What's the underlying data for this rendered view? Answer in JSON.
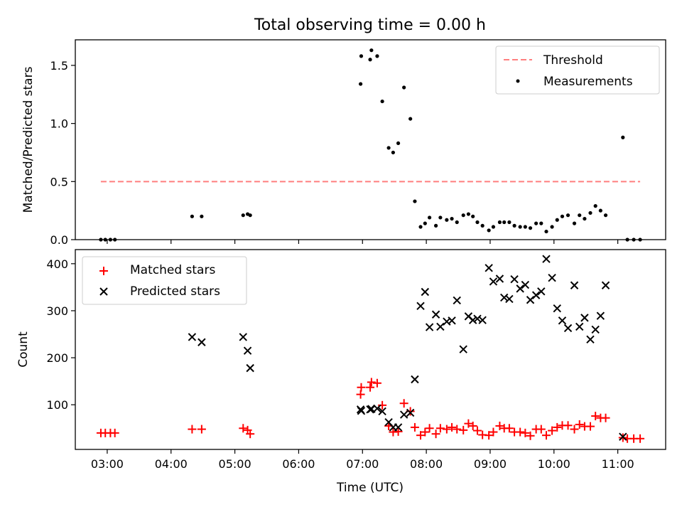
{
  "figure": {
    "title": "Total observing time = 0.00 h"
  },
  "chart_data": [
    {
      "type": "scatter",
      "ylabel": "Matched/Predicted stars",
      "xlabel": "",
      "xlim": [
        2.5,
        11.75
      ],
      "ylim": [
        0,
        1.72
      ],
      "x_ticks": [
        3,
        4,
        5,
        6,
        7,
        8,
        9,
        10,
        11
      ],
      "y_ticks": [
        0.0,
        0.5,
        1.0,
        1.5
      ],
      "y_tick_labels": [
        "0.0",
        "0.5",
        "1.0",
        "1.5"
      ],
      "x_tick_labels_visible": false,
      "legend_position": "top-right",
      "threshold": {
        "name": "Threshold",
        "value": 0.5,
        "x_range": [
          2.9,
          11.35
        ],
        "color": "#ff7f7f",
        "style": "dashed"
      },
      "series": [
        {
          "name": "Measurements",
          "color": "#000000",
          "marker": "dot",
          "points": [
            [
              2.9,
              0.0
            ],
            [
              2.97,
              0.0
            ],
            [
              3.05,
              0.0
            ],
            [
              3.12,
              0.0
            ],
            [
              4.33,
              0.2
            ],
            [
              4.48,
              0.2
            ],
            [
              5.13,
              0.21
            ],
            [
              5.2,
              0.22
            ],
            [
              5.24,
              0.21
            ],
            [
              6.97,
              1.34
            ],
            [
              6.98,
              1.58
            ],
            [
              7.12,
              1.55
            ],
            [
              7.14,
              1.63
            ],
            [
              7.23,
              1.58
            ],
            [
              7.31,
              1.19
            ],
            [
              7.41,
              0.79
            ],
            [
              7.48,
              0.75
            ],
            [
              7.56,
              0.83
            ],
            [
              7.65,
              1.31
            ],
            [
              7.75,
              1.04
            ],
            [
              7.82,
              0.33
            ],
            [
              7.91,
              0.11
            ],
            [
              7.98,
              0.14
            ],
            [
              8.05,
              0.19
            ],
            [
              8.15,
              0.12
            ],
            [
              8.22,
              0.19
            ],
            [
              8.32,
              0.17
            ],
            [
              8.4,
              0.18
            ],
            [
              8.48,
              0.15
            ],
            [
              8.58,
              0.21
            ],
            [
              8.66,
              0.22
            ],
            [
              8.73,
              0.2
            ],
            [
              8.8,
              0.15
            ],
            [
              8.88,
              0.12
            ],
            [
              8.98,
              0.08
            ],
            [
              9.05,
              0.11
            ],
            [
              9.15,
              0.15
            ],
            [
              9.22,
              0.15
            ],
            [
              9.3,
              0.15
            ],
            [
              9.38,
              0.12
            ],
            [
              9.47,
              0.11
            ],
            [
              9.55,
              0.11
            ],
            [
              9.63,
              0.1
            ],
            [
              9.72,
              0.14
            ],
            [
              9.8,
              0.14
            ],
            [
              9.88,
              0.07
            ],
            [
              9.97,
              0.11
            ],
            [
              10.05,
              0.17
            ],
            [
              10.13,
              0.2
            ],
            [
              10.22,
              0.21
            ],
            [
              10.32,
              0.14
            ],
            [
              10.4,
              0.21
            ],
            [
              10.48,
              0.18
            ],
            [
              10.57,
              0.23
            ],
            [
              10.65,
              0.29
            ],
            [
              10.73,
              0.25
            ],
            [
              10.81,
              0.21
            ],
            [
              11.08,
              0.88
            ],
            [
              11.15,
              0.0
            ],
            [
              11.25,
              0.0
            ],
            [
              11.35,
              0.0
            ]
          ]
        }
      ]
    },
    {
      "type": "scatter",
      "ylabel": "Count",
      "xlabel": "Time (UTC)",
      "xlim": [
        2.5,
        11.75
      ],
      "ylim": [
        5,
        430
      ],
      "x_ticks": [
        3,
        4,
        5,
        6,
        7,
        8,
        9,
        10,
        11
      ],
      "x_tick_labels": [
        "03:00",
        "04:00",
        "05:00",
        "06:00",
        "07:00",
        "08:00",
        "09:00",
        "10:00",
        "11:00"
      ],
      "y_ticks": [
        100,
        200,
        300,
        400
      ],
      "y_tick_labels": [
        "100",
        "200",
        "300",
        "400"
      ],
      "legend_position": "top-left",
      "series": [
        {
          "name": "Matched stars",
          "color": "#ff0000",
          "marker": "plus",
          "points": [
            [
              2.9,
              40
            ],
            [
              2.97,
              40
            ],
            [
              3.05,
              40
            ],
            [
              3.12,
              40
            ],
            [
              4.33,
              48
            ],
            [
              4.48,
              48
            ],
            [
              5.13,
              50
            ],
            [
              5.2,
              46
            ],
            [
              5.24,
              38
            ],
            [
              6.97,
              122
            ],
            [
              6.98,
              137
            ],
            [
              7.12,
              137
            ],
            [
              7.14,
              148
            ],
            [
              7.23,
              146
            ],
            [
              7.31,
              99
            ],
            [
              7.41,
              55
            ],
            [
              7.48,
              42
            ],
            [
              7.56,
              43
            ],
            [
              7.65,
              103
            ],
            [
              7.75,
              86
            ],
            [
              7.82,
              52
            ],
            [
              7.91,
              35
            ],
            [
              7.98,
              42
            ],
            [
              8.05,
              50
            ],
            [
              8.15,
              38
            ],
            [
              8.22,
              50
            ],
            [
              8.32,
              48
            ],
            [
              8.4,
              52
            ],
            [
              8.48,
              48
            ],
            [
              8.58,
              46
            ],
            [
              8.66,
              60
            ],
            [
              8.73,
              55
            ],
            [
              8.8,
              45
            ],
            [
              8.88,
              36
            ],
            [
              8.98,
              35
            ],
            [
              9.05,
              42
            ],
            [
              9.15,
              55
            ],
            [
              9.22,
              50
            ],
            [
              9.3,
              50
            ],
            [
              9.38,
              42
            ],
            [
              9.47,
              42
            ],
            [
              9.55,
              40
            ],
            [
              9.63,
              34
            ],
            [
              9.72,
              48
            ],
            [
              9.8,
              48
            ],
            [
              9.88,
              35
            ],
            [
              9.97,
              45
            ],
            [
              10.05,
              52
            ],
            [
              10.13,
              56
            ],
            [
              10.22,
              56
            ],
            [
              10.32,
              48
            ],
            [
              10.4,
              58
            ],
            [
              10.48,
              54
            ],
            [
              10.57,
              54
            ],
            [
              10.65,
              76
            ],
            [
              10.73,
              72
            ],
            [
              10.81,
              72
            ],
            [
              11.08,
              30
            ],
            [
              11.15,
              28
            ],
            [
              11.25,
              28
            ],
            [
              11.35,
              28
            ]
          ]
        },
        {
          "name": "Predicted stars",
          "color": "#000000",
          "marker": "x",
          "points": [
            [
              4.33,
              244
            ],
            [
              4.48,
              233
            ],
            [
              5.13,
              244
            ],
            [
              5.2,
              215
            ],
            [
              5.24,
              178
            ],
            [
              6.97,
              90
            ],
            [
              6.98,
              87
            ],
            [
              7.12,
              90
            ],
            [
              7.14,
              91
            ],
            [
              7.23,
              92
            ],
            [
              7.31,
              86
            ],
            [
              7.41,
              63
            ],
            [
              7.48,
              52
            ],
            [
              7.56,
              52
            ],
            [
              7.65,
              79
            ],
            [
              7.75,
              83
            ],
            [
              7.82,
              154
            ],
            [
              7.91,
              310
            ],
            [
              7.98,
              340
            ],
            [
              8.05,
              265
            ],
            [
              8.15,
              292
            ],
            [
              8.22,
              266
            ],
            [
              8.32,
              277
            ],
            [
              8.4,
              279
            ],
            [
              8.48,
              322
            ],
            [
              8.58,
              218
            ],
            [
              8.66,
              288
            ],
            [
              8.73,
              280
            ],
            [
              8.8,
              283
            ],
            [
              8.88,
              280
            ],
            [
              8.98,
              391
            ],
            [
              9.05,
              362
            ],
            [
              9.15,
              368
            ],
            [
              9.22,
              328
            ],
            [
              9.3,
              325
            ],
            [
              9.38,
              367
            ],
            [
              9.47,
              347
            ],
            [
              9.55,
              355
            ],
            [
              9.63,
              323
            ],
            [
              9.72,
              333
            ],
            [
              9.8,
              341
            ],
            [
              9.88,
              410
            ],
            [
              9.97,
              370
            ],
            [
              10.05,
              305
            ],
            [
              10.13,
              279
            ],
            [
              10.22,
              263
            ],
            [
              10.32,
              354
            ],
            [
              10.4,
              266
            ],
            [
              10.48,
              285
            ],
            [
              10.57,
              239
            ],
            [
              10.65,
              260
            ],
            [
              10.73,
              289
            ],
            [
              10.81,
              354
            ],
            [
              11.08,
              32
            ]
          ]
        }
      ]
    }
  ]
}
